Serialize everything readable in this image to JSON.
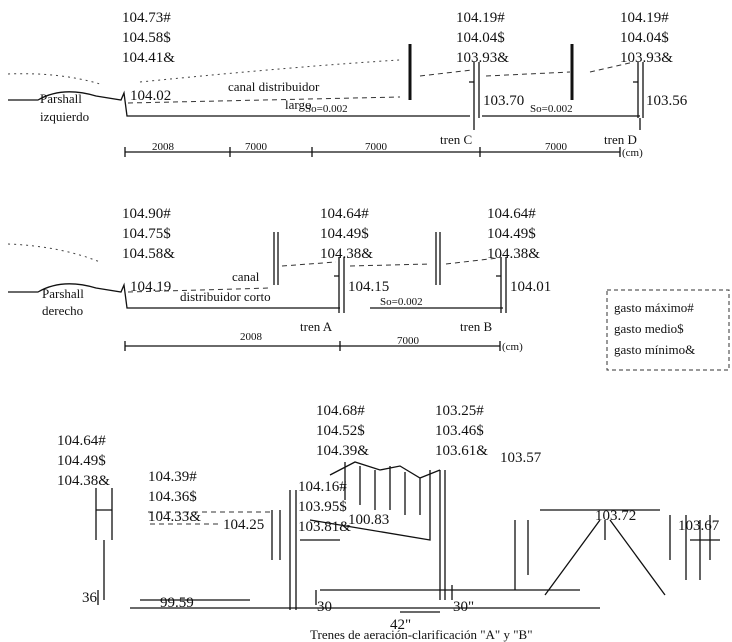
{
  "izquierdo": {
    "left_levels": [
      "104.73#",
      "104.58$",
      "104.41&"
    ],
    "parshall": [
      "Parshall",
      "izquierdo"
    ],
    "start_level": "104.02",
    "canal": [
      "canal distribuidor",
      "largo"
    ],
    "slope_1": "So=0.002",
    "train_c_levels": [
      "104.19#",
      "104.04$",
      "103.93&"
    ],
    "train_c_level": "103.70",
    "slope_2": "So=0.002",
    "train_d_levels": [
      "104.19#",
      "104.04$",
      "103.93&"
    ],
    "train_d_level": "103.56",
    "train_c": "tren C",
    "train_d": "tren D",
    "distances": [
      "2008",
      "7000",
      "7000",
      "7000"
    ],
    "unit": "(cm)"
  },
  "derecho": {
    "left_levels": [
      "104.90#",
      "104.75$",
      "104.58&"
    ],
    "parshall": [
      "Parshall",
      "derecho"
    ],
    "start_level": "104.19",
    "canal": [
      "canal",
      "distribuidor corto"
    ],
    "train_a_levels": [
      "104.64#",
      "104.49$",
      "104.38&"
    ],
    "train_a_level": "104.15",
    "slope": "So=0.002",
    "train_b_levels": [
      "104.64#",
      "104.49$",
      "104.38&"
    ],
    "train_b_level": "104.01",
    "train_a": "tren A",
    "train_b": "tren B",
    "distances": [
      "2008",
      "7000"
    ],
    "unit": "(cm)"
  },
  "legend": [
    "gasto máximo#",
    "gasto medio$",
    "gasto mínimo&"
  ],
  "aeracion": {
    "inlet_levels": [
      "104.64#",
      "104.49$",
      "104.38&"
    ],
    "channel_levels": [
      "104.39#",
      "104.36$",
      "104.33&"
    ],
    "channel_level": "104.25",
    "aerator_top_levels": [
      "104.68#",
      "104.52$",
      "104.39&"
    ],
    "aerator_mid_levels": [
      "104.16#",
      "103.95$",
      "103.81&"
    ],
    "aerator_bottom": "100.83",
    "outlet_levels": [
      "103.25#",
      "103.46$",
      "103.61&"
    ],
    "outlet_level": "103.57",
    "clarifier_level": "103.72",
    "clarifier_out_level": "103.67",
    "dim_inlet": "36",
    "inlet_bottom": "99.59",
    "dim_left": "30",
    "dim_right": "30\"",
    "dim_width": "42\"",
    "caption": "Trenes de aeración-clarificación \"A\" y \"B\""
  }
}
